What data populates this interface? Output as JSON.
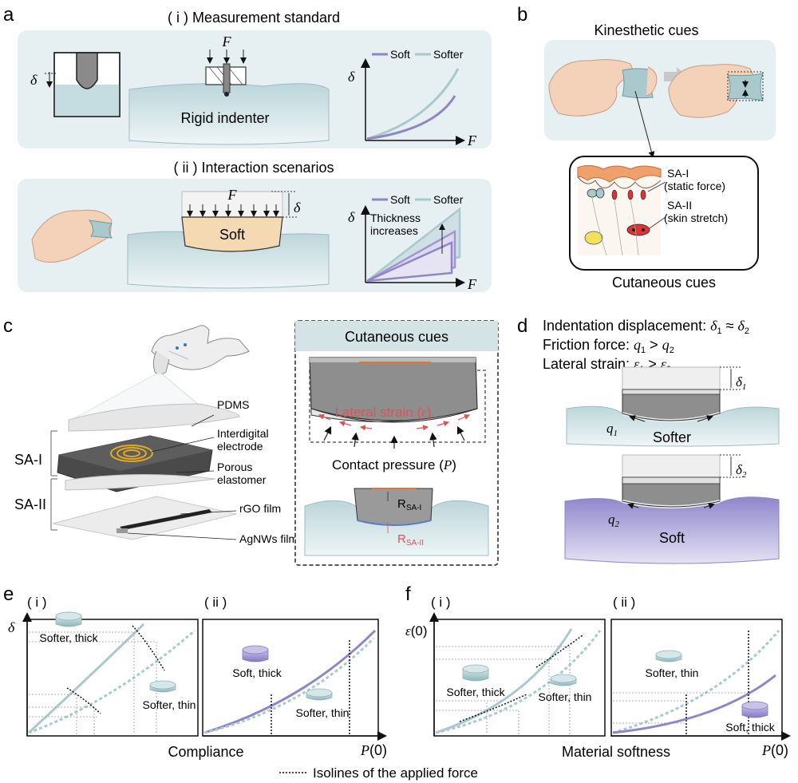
{
  "panels": {
    "a": {
      "letter": "a",
      "i_title": "( i ) Measurement standard",
      "ii_title": "( ii ) Interaction scenarios",
      "force": "F",
      "delta": "δ",
      "rigid_indenter": "Rigid indenter",
      "soft_block": "Soft",
      "thickness": [
        "Thickness",
        "increases"
      ],
      "legend": [
        "Soft",
        "Softer"
      ],
      "axis_x": "F",
      "axis_y": "δ"
    },
    "b": {
      "letter": "b",
      "title": "Kinesthetic cues",
      "bottom_title": "Cutaneous cues",
      "sa1": [
        "SA-I",
        "(static force)"
      ],
      "sa2": [
        "SA-II",
        "(skin stretch)"
      ]
    },
    "c": {
      "letter": "c",
      "layers": [
        "PDMS",
        "Interdigital",
        "electrode",
        "Porous",
        "elastomer",
        "rGO film",
        "AgNWs film"
      ],
      "groups": [
        "SA-I",
        "SA-II"
      ],
      "box_title": "Cutaneous cues",
      "lateral_strain": "Lateral strain (",
      "eps": "ε",
      "contact_pressure": "Contact pressure (",
      "P": "P",
      "r_sa1": "SA-I",
      "r_sa2": "SA-II",
      "R": "R"
    },
    "d": {
      "letter": "d",
      "line1": "Indentation displacement:",
      "line2": "Friction force:",
      "line3": "Lateral strain:",
      "softer": "Softer",
      "soft": "Soft",
      "q": "q"
    },
    "e": {
      "letter": "e",
      "i": "( i )",
      "ii": "( ii )",
      "y_label": "δ",
      "x_label": "P(0)",
      "center_label": "Compliance",
      "samples_i": [
        "Softer, thick",
        "Softer, thin"
      ],
      "samples_ii": [
        "Soft, thick",
        "Softer, thin"
      ]
    },
    "f": {
      "letter": "f",
      "i": "( i )",
      "ii": "( ii )",
      "y_label": "ε(0)",
      "x_label": "P(0)",
      "center_label": "Material softness",
      "samples_i": [
        "Softer, thick",
        "Softer, thin"
      ],
      "samples_ii": [
        "Softer, thin",
        "Soft, thick"
      ]
    },
    "footer": "Isolines of the applied force"
  },
  "colors": {
    "bg_panel": "#e6eff1",
    "soft": "#8e86c8",
    "softer": "#a9c9cd",
    "skin": "#f4d2b9",
    "tissue": "#c5dce0",
    "strain": "#d8545b",
    "electrode": "#e0a923"
  }
}
